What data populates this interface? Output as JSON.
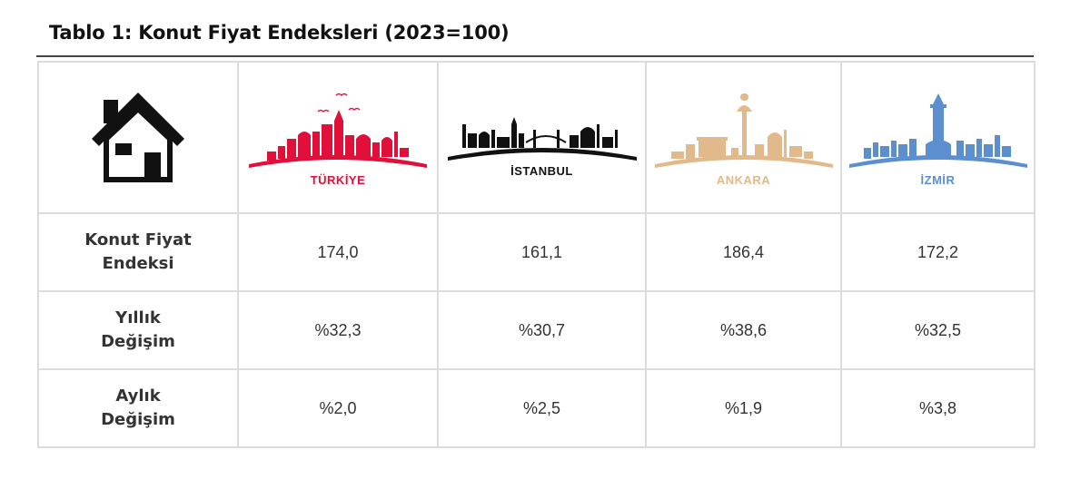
{
  "title": "Tablo 1: Konut Fiyat Endeksleri (2023=100)",
  "header": {
    "house_icon": "house-icon",
    "cities": [
      {
        "label": "TÜRKİYE",
        "color": "#e0103a",
        "icon": "turkiye-skyline-icon"
      },
      {
        "label": "İSTANBUL",
        "color": "#111111",
        "icon": "istanbul-skyline-icon"
      },
      {
        "label": "ANKARA",
        "color": "#e2b98a",
        "icon": "ankara-skyline-icon"
      },
      {
        "label": "İZMİR",
        "color": "#5b8fcf",
        "icon": "izmir-skyline-icon"
      }
    ]
  },
  "rows": [
    {
      "label_line1": "Konut Fiyat",
      "label_line2": "Endeksi",
      "values": [
        "174,0",
        "161,1",
        "186,4",
        "172,2"
      ]
    },
    {
      "label_line1": "Yıllık",
      "label_line2": "Değişim",
      "values": [
        "%32,3",
        "%30,7",
        "%38,6",
        "%32,5"
      ]
    },
    {
      "label_line1": "Aylık",
      "label_line2": "Değişim",
      "values": [
        "%2,0",
        "%2,5",
        "%1,9",
        "%3,8"
      ]
    }
  ]
}
